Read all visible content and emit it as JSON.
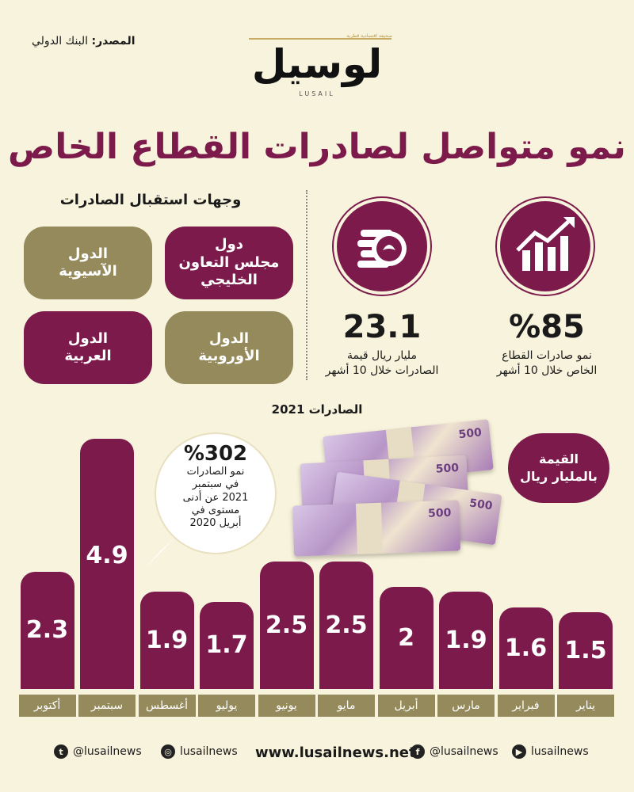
{
  "source": {
    "label": "المصدر:",
    "value": "البنك الدولي"
  },
  "logo": {
    "tagline": "صحيفة اقتصادية قطرية",
    "name": "لوسيل",
    "latin": "LUSAIL"
  },
  "title": "نمو متواصل لصادرات القطاع الخاص",
  "destinations": {
    "title": "وجهات استقبال الصادرات",
    "items": [
      {
        "label": "دول\nمجلس التعاون\nالخليجي",
        "color": "#7b1a4b"
      },
      {
        "label": "الدول\nالآسيوية",
        "color": "#958a5c"
      },
      {
        "label": "الدول\nالأوروبية",
        "color": "#958a5c"
      },
      {
        "label": "الدول\nالعربية",
        "color": "#7b1a4b"
      }
    ]
  },
  "stats": [
    {
      "icon": "growth-chart-icon",
      "value": "%85",
      "desc": "نمو صادرات القطاع\nالخاص خلال 10 أشهر"
    },
    {
      "icon": "coins-icon",
      "value": "23.1",
      "desc": "مليار ريال قيمة\nالصادرات خلال 10 أشهر"
    }
  ],
  "callout": {
    "value": "%302",
    "text": "نمو الصادرات\nفي سبتمبر\n2021 عن أدنى\nمستوى في\nأبريل 2020"
  },
  "unit_badge": "القيمة\nبالمليار ريال",
  "banknote_value": "500",
  "chart_data": {
    "type": "bar",
    "title": "الصادرات 2021",
    "categories": [
      "يناير",
      "فبراير",
      "مارس",
      "أبريل",
      "مايو",
      "يونيو",
      "يوليو",
      "أغسطس",
      "سبتمبر",
      "أكتوبر"
    ],
    "values": [
      1.5,
      1.6,
      1.9,
      2,
      2.5,
      2.5,
      1.7,
      1.9,
      4.9,
      2.3
    ],
    "value_labels": [
      "1.5",
      "1.6",
      "1.9",
      "2",
      "2.5",
      "2.5",
      "1.7",
      "1.9",
      "4.9",
      "2.3"
    ],
    "ylabel": "القيمة بالمليار ريال",
    "ylim": [
      0,
      4.9
    ],
    "direction": "right-to-left",
    "bar_color": "#7b1a4b",
    "label_color": "#958a5c"
  },
  "footer": {
    "twitter": "@lusailnews",
    "instagram": "lusailnews",
    "website": "www.lusailnews.net",
    "facebook": "@lusailnews",
    "youtube": "lusailnews"
  }
}
